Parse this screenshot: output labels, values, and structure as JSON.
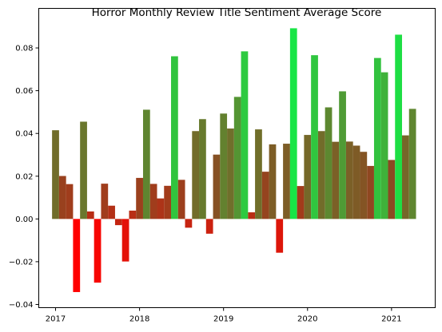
{
  "chart_data": {
    "type": "bar",
    "title": "Horror Monthly Review Title Sentiment Average Score",
    "xlabel": "",
    "ylabel": "",
    "xlim": [
      2016.8,
      2021.52
    ],
    "ylim": [
      -0.0415,
      0.0985
    ],
    "grid": false,
    "legend": "none",
    "bar_width_years": 0.0833,
    "color_scale": {
      "min_value": -0.034,
      "max_value": 0.089,
      "low_color": "#ff0000",
      "mid_color": "#8b4a22",
      "high_color": "#19e546"
    },
    "x_ticks": [
      {
        "value": 2017,
        "label": "2017"
      },
      {
        "value": 2018,
        "label": "2018"
      },
      {
        "value": 2019,
        "label": "2019"
      },
      {
        "value": 2020,
        "label": "2020"
      },
      {
        "value": 2021,
        "label": "2021"
      }
    ],
    "y_ticks": [
      {
        "value": -0.04,
        "label": "−0.04"
      },
      {
        "value": -0.02,
        "label": "−0.02"
      },
      {
        "value": 0.0,
        "label": "0.00"
      },
      {
        "value": 0.02,
        "label": "0.02"
      },
      {
        "value": 0.04,
        "label": "0.04"
      },
      {
        "value": 0.06,
        "label": "0.06"
      },
      {
        "value": 0.08,
        "label": "0.08"
      }
    ],
    "series": [
      {
        "points": [
          {
            "x": "2017-01",
            "y": 0.0415
          },
          {
            "x": "2017-02",
            "y": 0.0201
          },
          {
            "x": "2017-03",
            "y": 0.0163
          },
          {
            "x": "2017-04",
            "y": -0.0342
          },
          {
            "x": "2017-05",
            "y": 0.0455
          },
          {
            "x": "2017-06",
            "y": 0.0035
          },
          {
            "x": "2017-07",
            "y": -0.0298
          },
          {
            "x": "2017-08",
            "y": 0.0165
          },
          {
            "x": "2017-09",
            "y": 0.0062
          },
          {
            "x": "2017-10",
            "y": -0.0029
          },
          {
            "x": "2017-11",
            "y": -0.0199
          },
          {
            "x": "2017-12",
            "y": 0.0039
          },
          {
            "x": "2018-01",
            "y": 0.0192
          },
          {
            "x": "2018-02",
            "y": 0.0511
          },
          {
            "x": "2018-03",
            "y": 0.0164
          },
          {
            "x": "2018-04",
            "y": 0.0096
          },
          {
            "x": "2018-05",
            "y": 0.0155
          },
          {
            "x": "2018-06",
            "y": 0.0761
          },
          {
            "x": "2018-07",
            "y": 0.0183
          },
          {
            "x": "2018-08",
            "y": -0.0041
          },
          {
            "x": "2018-09",
            "y": 0.0411
          },
          {
            "x": "2018-10",
            "y": 0.0467
          },
          {
            "x": "2018-11",
            "y": -0.0069
          },
          {
            "x": "2018-12",
            "y": 0.0301
          },
          {
            "x": "2019-01",
            "y": 0.0493
          },
          {
            "x": "2019-02",
            "y": 0.0423
          },
          {
            "x": "2019-03",
            "y": 0.0571
          },
          {
            "x": "2019-04",
            "y": 0.0784
          },
          {
            "x": "2019-05",
            "y": 0.0031
          },
          {
            "x": "2019-06",
            "y": 0.0419
          },
          {
            "x": "2019-07",
            "y": 0.0221
          },
          {
            "x": "2019-08",
            "y": 0.0349
          },
          {
            "x": "2019-09",
            "y": -0.0158
          },
          {
            "x": "2019-10",
            "y": 0.0352
          },
          {
            "x": "2019-11",
            "y": 0.0892
          },
          {
            "x": "2019-12",
            "y": 0.0154
          },
          {
            "x": "2020-01",
            "y": 0.0393
          },
          {
            "x": "2020-02",
            "y": 0.0766
          },
          {
            "x": "2020-03",
            "y": 0.0411
          },
          {
            "x": "2020-04",
            "y": 0.0522
          },
          {
            "x": "2020-05",
            "y": 0.0361
          },
          {
            "x": "2020-06",
            "y": 0.0597
          },
          {
            "x": "2020-07",
            "y": 0.0362
          },
          {
            "x": "2020-08",
            "y": 0.0343
          },
          {
            "x": "2020-09",
            "y": 0.0314
          },
          {
            "x": "2020-10",
            "y": 0.0248
          },
          {
            "x": "2020-11",
            "y": 0.0753
          },
          {
            "x": "2020-12",
            "y": 0.0686
          },
          {
            "x": "2021-01",
            "y": 0.0276
          },
          {
            "x": "2021-02",
            "y": 0.0862
          },
          {
            "x": "2021-03",
            "y": 0.0391
          },
          {
            "x": "2021-04",
            "y": 0.0515
          }
        ]
      }
    ]
  }
}
